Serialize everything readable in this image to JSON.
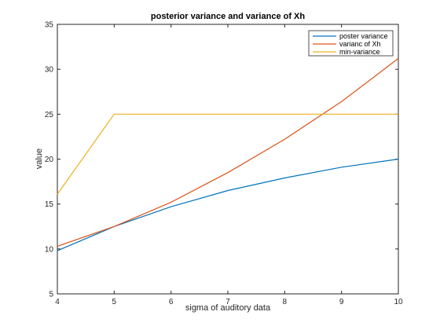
{
  "chart_data": {
    "type": "line",
    "title": "posterior variance and variance of Xh",
    "xlabel": "sigma of auditory data",
    "ylabel": "value",
    "xlim": [
      4,
      10
    ],
    "ylim": [
      5,
      35
    ],
    "xticks": [
      "4",
      "5",
      "6",
      "7",
      "8",
      "9",
      "10"
    ],
    "yticks": [
      "5",
      "10",
      "15",
      "20",
      "25",
      "30",
      "35"
    ],
    "grid": false,
    "legend_position": "top-right",
    "x": [
      4,
      5,
      6,
      7,
      8,
      9,
      10
    ],
    "series": [
      {
        "name": "poster variance",
        "color": "#0072BD",
        "values": [
          9.8,
          12.5,
          14.7,
          16.5,
          17.9,
          19.1,
          20.0
        ]
      },
      {
        "name": "varianc of Xh",
        "color": "#D95319",
        "values": [
          10.3,
          12.5,
          15.2,
          18.5,
          22.2,
          26.4,
          31.2
        ]
      },
      {
        "name": "min-variance",
        "color": "#EDB120",
        "values": [
          16.1,
          25.0,
          25.0,
          25.0,
          25.0,
          25.0,
          25.0
        ]
      }
    ]
  }
}
